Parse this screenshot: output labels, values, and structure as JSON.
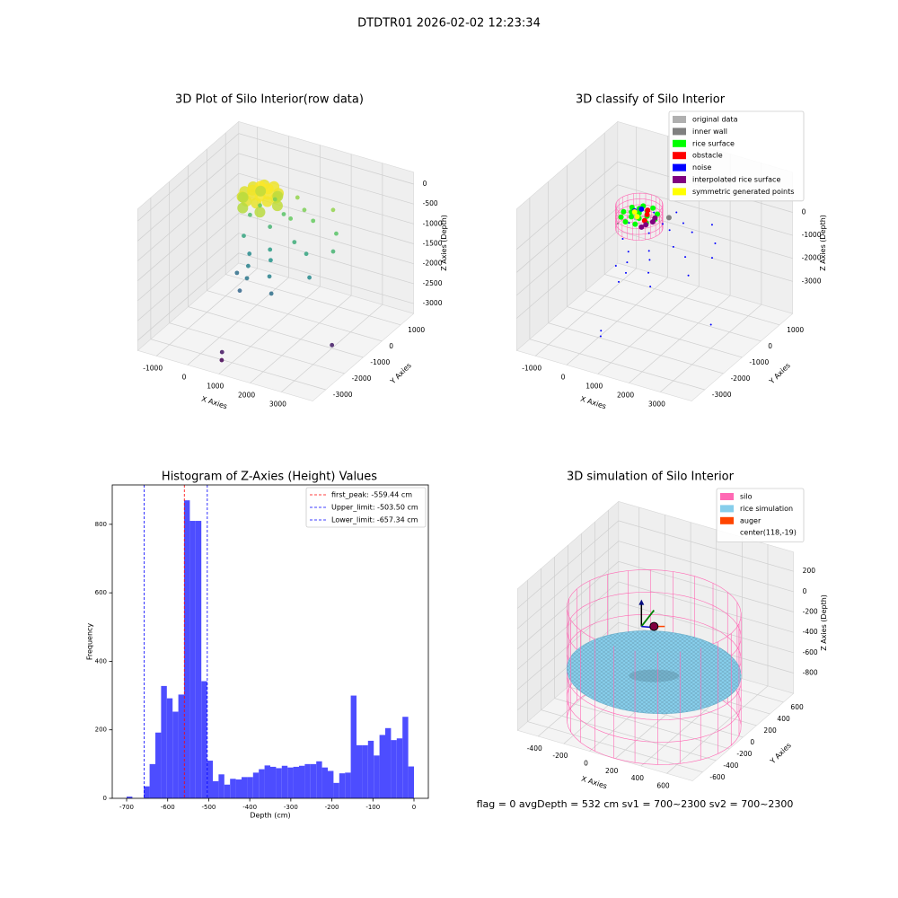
{
  "title": "DTDTR01 2026-02-02 12:23:34",
  "footer": "flag = 0     avgDepth = 532 cm  sv1 = 700~2300  sv2 = 700~2300",
  "chart_data": [
    {
      "type": "scatter3d",
      "title": "3D Plot of Silo Interior(row data)",
      "xlabel": "X Axies",
      "ylabel": "Y Axies",
      "zlabel": "Z Axies (Depth)",
      "xlim": [
        -1600,
        4000
      ],
      "ylim": [
        -3700,
        1700
      ],
      "zlim": [
        -3250,
        300
      ],
      "xticks": [
        -1000,
        0,
        1000,
        2000,
        3000
      ],
      "yticks": [
        -3000,
        -2000,
        -1000,
        0,
        1000
      ],
      "zticks": [
        0,
        -500,
        -1000,
        -1500,
        -2000,
        -2500,
        -3000
      ],
      "colormap": "viridis",
      "series": [
        {
          "x": [
            618,
            523,
            273,
            -37,
            -287,
            -382,
            -287,
            -37,
            273,
            523,
            368,
            243,
            -7,
            -132,
            -7,
            243,
            118,
            668,
            393,
            -157,
            -432,
            -157,
            393,
            -400,
            -300,
            -200,
            0,
            100,
            200,
            300,
            400,
            500,
            600,
            700,
            800,
            900,
            1000,
            1100,
            1200,
            1300,
            1500,
            1700,
            1900,
            2100,
            2300,
            2500,
            -100,
            350,
            800,
            850,
            3300
          ],
          "y": [
            -19,
            275,
            457,
            457,
            275,
            -19,
            -313,
            -494,
            -494,
            -313,
            -19,
            198,
            198,
            -19,
            -236,
            -236,
            -19,
            -19,
            457,
            457,
            -19,
            -495,
            -495,
            300,
            -200,
            500,
            -400,
            800,
            -800,
            200,
            -1200,
            600,
            -300,
            1000,
            -600,
            300,
            -1000,
            700,
            0,
            -1400,
            500,
            -200,
            900,
            -700,
            400,
            -100,
            -900,
            -1500,
            -3200,
            -3300,
            -1500
          ],
          "z": [
            -420,
            -440,
            -400,
            -430,
            -460,
            -480,
            -470,
            -450,
            -430,
            -410,
            -380,
            -360,
            -350,
            -390,
            -400,
            -370,
            -340,
            -600,
            -620,
            -610,
            -640,
            -650,
            -630,
            -1200,
            -1500,
            -1000,
            -1800,
            -900,
            -1900,
            -1300,
            -2000,
            -1100,
            -1600,
            -800,
            -1700,
            -1000,
            -1900,
            -900,
            -1400,
            -2100,
            -1000,
            -1500,
            -800,
            -1800,
            -1100,
            -1300,
            -2100,
            -2200,
            -2950,
            -3100,
            -2900
          ]
        }
      ]
    },
    {
      "type": "classify3d",
      "title": "3D classify of Silo Interior",
      "xlabel": "X Axies",
      "ylabel": "Y Axies",
      "zlabel": "Z Axies (Depth)",
      "xlim": [
        -1600,
        4000
      ],
      "ylim": [
        -3700,
        1700
      ],
      "zlim": [
        -4400,
        1750
      ],
      "xticks": [
        -1000,
        0,
        1000,
        2000,
        3000
      ],
      "yticks": [
        -3000,
        -2000,
        -1000,
        0,
        1000
      ],
      "zticks": [
        0,
        -1000,
        -2000,
        -3000
      ],
      "silo": {
        "color": "#ff69b4",
        "x": 118,
        "y": -19,
        "radius": 650,
        "zlim": [
          -1000,
          0
        ]
      },
      "series": [
        {
          "name": "original data",
          "color": "#b0b0b0",
          "x": [
            0,
            -200
          ],
          "y": [
            0,
            200
          ],
          "z": [
            -600,
            -700
          ]
        },
        {
          "name": "inner wall",
          "color": "#808080",
          "x": [
            -400,
            700
          ],
          "y": [
            -300,
            600
          ],
          "z": [
            -800,
            -750
          ]
        },
        {
          "name": "rice surface",
          "color": "#00ff00",
          "x": [
            618,
            523,
            273,
            -37,
            -287,
            -382,
            -287,
            -37,
            273,
            523,
            368,
            243,
            -7,
            -132,
            -7,
            243,
            118
          ],
          "y": [
            -19,
            275,
            457,
            457,
            275,
            -19,
            -313,
            -494,
            -494,
            -313,
            -19,
            198,
            198,
            -19,
            -236,
            -236,
            -19
          ],
          "z": [
            -420,
            -440,
            -400,
            -430,
            -460,
            -480,
            -470,
            -450,
            -430,
            -410,
            -380,
            -360,
            -350,
            -390,
            -400,
            -370,
            -340
          ]
        },
        {
          "name": "obstacle",
          "color": "#ff0000",
          "x": [
            300,
            400,
            200
          ],
          "y": [
            100,
            -200,
            300
          ],
          "z": [
            -420,
            -430,
            -410
          ]
        },
        {
          "name": "noise",
          "color": "#0000ff",
          "x": [
            -400,
            -300,
            -200,
            0,
            100,
            200,
            300,
            400,
            500,
            600,
            700,
            800,
            900,
            1000,
            1100,
            1200,
            1300,
            1500,
            1700,
            1900,
            2100,
            2300,
            2500,
            -100,
            350,
            800,
            850,
            3300,
            -100,
            0
          ],
          "y": [
            300,
            -200,
            500,
            -400,
            800,
            -800,
            200,
            -1200,
            600,
            -300,
            1000,
            -600,
            300,
            -1000,
            700,
            0,
            -1400,
            500,
            -200,
            900,
            -700,
            400,
            -100,
            -900,
            -1500,
            -3200,
            -3300,
            -1500,
            100,
            300
          ],
          "z": [
            -1200,
            -1500,
            -1000,
            -1800,
            -900,
            -1900,
            -1300,
            -2000,
            -1100,
            -1600,
            -800,
            -1700,
            -1000,
            -1900,
            -900,
            -1400,
            -2100,
            -1000,
            -1500,
            -800,
            -1800,
            -1100,
            -1300,
            -2100,
            -2200,
            -2950,
            -3100,
            -2900,
            -420,
            -440
          ]
        },
        {
          "name": "interpolated rice surface",
          "color": "#800080",
          "x": [
            500,
            600,
            450,
            550
          ],
          "y": [
            -300,
            -100,
            -450,
            100
          ],
          "z": [
            -500,
            -480,
            -520,
            -470
          ]
        },
        {
          "name": "symmetric generated points",
          "color": "#ffff00",
          "x": [
            100,
            -100
          ],
          "y": [
            -100,
            100
          ],
          "z": [
            -450,
            -460
          ]
        }
      ]
    },
    {
      "type": "histogram",
      "title": "Histogram of Z-Axies (Height) Values",
      "xlabel": "Depth (cm)",
      "ylabel": "Frequency",
      "color": "#4d4dff",
      "xlim": [
        -735,
        35
      ],
      "ylim": [
        0,
        915
      ],
      "xticks": [
        -700,
        -600,
        -500,
        -400,
        -300,
        -200,
        -100,
        0
      ],
      "yticks": [
        0,
        200,
        400,
        600,
        800
      ],
      "bins": [
        -700,
        -686,
        -672,
        -658,
        -644,
        -630,
        -616,
        -602,
        -588,
        -574,
        -560,
        -546,
        -532,
        -518,
        -504,
        -490,
        -476,
        -462,
        -448,
        -434,
        -420,
        -406,
        -392,
        -378,
        -364,
        -350,
        -336,
        -322,
        -308,
        -294,
        -280,
        -266,
        -252,
        -238,
        -224,
        -210,
        -196,
        -182,
        -168,
        -154,
        -140,
        -126,
        -112,
        -98,
        -84,
        -70,
        -56,
        -42,
        -28,
        -14,
        0
      ],
      "values": [
        5,
        0,
        0,
        35,
        100,
        192,
        328,
        292,
        253,
        303,
        870,
        810,
        810,
        342,
        110,
        50,
        70,
        40,
        57,
        55,
        62,
        62,
        75,
        85,
        96,
        92,
        88,
        95,
        90,
        92,
        95,
        100,
        100,
        108,
        90,
        80,
        45,
        73,
        75,
        300,
        155,
        155,
        168,
        125,
        185,
        205,
        170,
        175,
        238,
        93
      ],
      "vlines": [
        {
          "name": "first_peak: -559.44 cm",
          "value": -559.44,
          "color": "#ff0000"
        },
        {
          "name": "Upper_limit: -503.50 cm",
          "value": -503.5,
          "color": "#0000ff"
        },
        {
          "name": "Lower_limit: -657.34 cm",
          "value": -657.34,
          "color": "#0000ff"
        }
      ]
    },
    {
      "type": "simulation3d",
      "title": "3D simulation of Silo Interior",
      "xlabel": "X Axies",
      "ylabel": "Y Axies",
      "zlabel": "Z Axies (Depth)",
      "xlim": [
        -560,
        800
      ],
      "ylim": [
        -750,
        750
      ],
      "zlim": [
        -1000,
        390
      ],
      "xticks": [
        -400,
        -200,
        0,
        200,
        400,
        600
      ],
      "yticks": [
        -600,
        -400,
        -200,
        0,
        200,
        400,
        600
      ],
      "zticks": [
        200,
        0,
        -200,
        -400,
        -600,
        -800
      ],
      "series": [
        {
          "name": "silo",
          "color": "#ff69b4",
          "radius": 600,
          "zlim": [
            -1100,
            0
          ]
        },
        {
          "name": "rice simulation",
          "color": "#87ceeb",
          "radius": 600,
          "z": -600
        },
        {
          "name": "auger",
          "color": "#ff4500",
          "z": -150
        },
        {
          "name": "center(118,-19)",
          "x": 118,
          "y": -19
        }
      ]
    }
  ]
}
